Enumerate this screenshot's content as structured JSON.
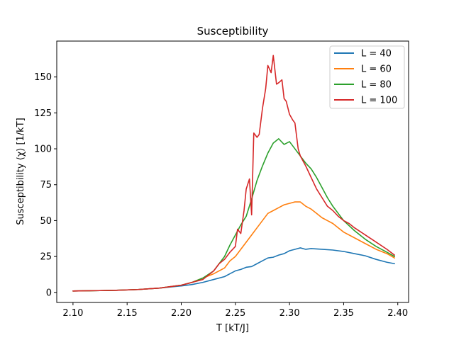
{
  "chart_data": {
    "type": "line",
    "title": "Susceptibility",
    "xlabel": "T [kT/J]",
    "ylabel": "Susceptibility ⟨χ⟩ [1/kT]",
    "xlim": [
      2.085,
      2.41
    ],
    "ylim": [
      -7,
      175
    ],
    "xticks": [
      2.1,
      2.15,
      2.2,
      2.25,
      2.3,
      2.35,
      2.4
    ],
    "xtick_labels": [
      "2.10",
      "2.15",
      "2.20",
      "2.25",
      "2.30",
      "2.35",
      "2.40"
    ],
    "yticks": [
      0,
      25,
      50,
      75,
      100,
      125,
      150
    ],
    "ytick_labels": [
      "0",
      "25",
      "50",
      "75",
      "100",
      "125",
      "150"
    ],
    "grid": false,
    "legend_position": "top-right",
    "series": [
      {
        "name": "L = 40",
        "color": "#1f77b4",
        "x": [
          2.1,
          2.12,
          2.14,
          2.16,
          2.18,
          2.2,
          2.21,
          2.22,
          2.23,
          2.24,
          2.245,
          2.25,
          2.255,
          2.26,
          2.265,
          2.27,
          2.275,
          2.28,
          2.285,
          2.29,
          2.295,
          2.3,
          2.305,
          2.31,
          2.315,
          2.32,
          2.33,
          2.34,
          2.35,
          2.36,
          2.37,
          2.38,
          2.39,
          2.397
        ],
        "y": [
          1,
          1.2,
          1.5,
          2,
          3,
          4.5,
          5.5,
          7,
          9,
          11,
          13,
          15,
          16,
          17.5,
          18,
          20,
          22,
          24,
          24.5,
          26,
          27,
          29,
          30,
          31,
          30,
          30.5,
          30,
          29.5,
          28.5,
          27,
          25.5,
          23,
          21,
          20
        ]
      },
      {
        "name": "L = 60",
        "color": "#ff7f0e",
        "x": [
          2.1,
          2.12,
          2.14,
          2.16,
          2.18,
          2.2,
          2.21,
          2.22,
          2.23,
          2.24,
          2.245,
          2.25,
          2.255,
          2.26,
          2.265,
          2.27,
          2.275,
          2.28,
          2.285,
          2.29,
          2.295,
          2.3,
          2.305,
          2.31,
          2.315,
          2.32,
          2.325,
          2.33,
          2.335,
          2.34,
          2.345,
          2.35,
          2.36,
          2.37,
          2.38,
          2.39,
          2.397
        ],
        "y": [
          1,
          1.2,
          1.5,
          2,
          3,
          5,
          7,
          10,
          13,
          17,
          22,
          25,
          30,
          35,
          40,
          45,
          50,
          55,
          57,
          59,
          61,
          62,
          63,
          63,
          60,
          58,
          55,
          52,
          50,
          48,
          45,
          42,
          38,
          34,
          30,
          27,
          24
        ]
      },
      {
        "name": "L = 80",
        "color": "#2ca02c",
        "x": [
          2.1,
          2.12,
          2.14,
          2.16,
          2.18,
          2.2,
          2.21,
          2.22,
          2.23,
          2.235,
          2.24,
          2.245,
          2.25,
          2.255,
          2.26,
          2.265,
          2.27,
          2.275,
          2.28,
          2.285,
          2.29,
          2.295,
          2.3,
          2.305,
          2.31,
          2.315,
          2.32,
          2.325,
          2.33,
          2.335,
          2.34,
          2.345,
          2.35,
          2.36,
          2.37,
          2.38,
          2.39,
          2.397
        ],
        "y": [
          1,
          1.2,
          1.5,
          2,
          3,
          5,
          7,
          10,
          15,
          20,
          25,
          33,
          40,
          47,
          53,
          65,
          78,
          88,
          97,
          104,
          107,
          103,
          105,
          100,
          95,
          90,
          86,
          80,
          73,
          66,
          60,
          55,
          50,
          43,
          37,
          32,
          28,
          25
        ]
      },
      {
        "name": "L = 100",
        "color": "#d62728",
        "x": [
          2.1,
          2.12,
          2.14,
          2.16,
          2.18,
          2.2,
          2.21,
          2.22,
          2.225,
          2.23,
          2.235,
          2.24,
          2.245,
          2.25,
          2.252,
          2.255,
          2.258,
          2.26,
          2.263,
          2.265,
          2.267,
          2.27,
          2.272,
          2.275,
          2.278,
          2.28,
          2.283,
          2.285,
          2.288,
          2.29,
          2.293,
          2.295,
          2.297,
          2.3,
          2.303,
          2.305,
          2.308,
          2.31,
          2.315,
          2.32,
          2.325,
          2.33,
          2.335,
          2.34,
          2.345,
          2.35,
          2.355,
          2.36,
          2.37,
          2.38,
          2.39,
          2.397
        ],
        "y": [
          1,
          1.2,
          1.5,
          2,
          3,
          5,
          7,
          9,
          12,
          15,
          20,
          23,
          28,
          32,
          44,
          41,
          57,
          72,
          79,
          54,
          111,
          108,
          110,
          128,
          142,
          158,
          153,
          165,
          145,
          146,
          148,
          135,
          133,
          124,
          120,
          118,
          100,
          95,
          88,
          80,
          72,
          66,
          60,
          57,
          53,
          50,
          48,
          45,
          40,
          35,
          30,
          26
        ]
      }
    ]
  }
}
